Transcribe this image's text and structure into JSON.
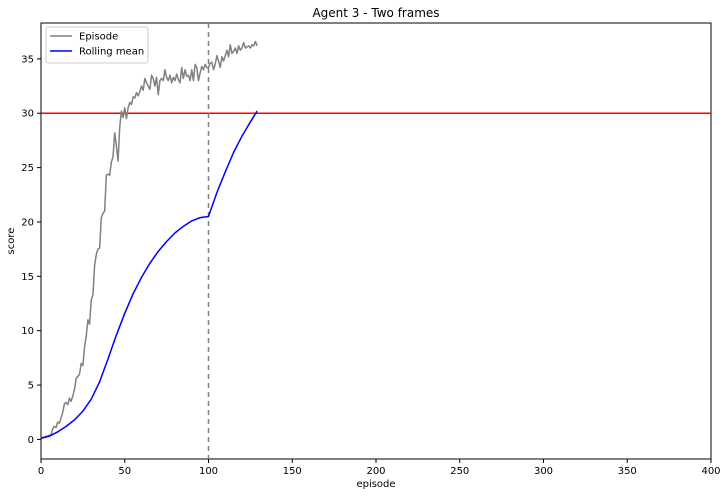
{
  "chart_data": {
    "type": "line",
    "title": "Agent 3 - Two frames",
    "xlabel": "episode",
    "ylabel": "score",
    "xlim": [
      0,
      400
    ],
    "ylim": [
      -1.8,
      38.3
    ],
    "xticks": [
      0,
      50,
      100,
      150,
      200,
      250,
      300,
      350,
      400
    ],
    "yticks": [
      0,
      5,
      10,
      15,
      20,
      25,
      30,
      35
    ],
    "grid": false,
    "legend_placement": "top-left",
    "colors": {
      "episode": "#808080",
      "rolling": "#0000ff",
      "target": "#ff0000",
      "vline": "#808080"
    },
    "hline": {
      "y": 30
    },
    "vline": {
      "x": 100
    },
    "series": [
      {
        "name": "Episode",
        "x": [
          0,
          1,
          2,
          3,
          4,
          5,
          6,
          7,
          8,
          9,
          10,
          11,
          12,
          13,
          14,
          15,
          16,
          17,
          18,
          19,
          20,
          21,
          22,
          23,
          24,
          25,
          26,
          27,
          28,
          29,
          30,
          31,
          32,
          33,
          34,
          35,
          36,
          37,
          38,
          39,
          40,
          41,
          42,
          43,
          44,
          45,
          46,
          47,
          48,
          49,
          50,
          51,
          52,
          53,
          54,
          55,
          56,
          57,
          58,
          59,
          60,
          61,
          62,
          63,
          64,
          65,
          66,
          67,
          68,
          69,
          70,
          71,
          72,
          73,
          74,
          75,
          76,
          77,
          78,
          79,
          80,
          81,
          82,
          83,
          84,
          85,
          86,
          87,
          88,
          89,
          90,
          91,
          92,
          93,
          94,
          95,
          96,
          97,
          98,
          99,
          100,
          101,
          102,
          103,
          104,
          105,
          106,
          107,
          108,
          109,
          110,
          111,
          112,
          113,
          114,
          115,
          116,
          117,
          118,
          119,
          120,
          121,
          122,
          123,
          124,
          125,
          126,
          127,
          128,
          129
        ],
        "values": [
          0.1,
          0.2,
          0.2,
          0.3,
          0.3,
          0.4,
          0.4,
          1.0,
          1.2,
          1.1,
          1.6,
          1.5,
          2.0,
          2.5,
          3.3,
          3.4,
          3.2,
          3.8,
          3.5,
          4.0,
          4.6,
          5.6,
          5.8,
          6.0,
          7.0,
          6.8,
          8.5,
          9.5,
          11.0,
          10.6,
          12.8,
          13.3,
          16.0,
          17.0,
          17.5,
          17.6,
          20.4,
          20.8,
          21.0,
          24.3,
          24.4,
          24.3,
          25.5,
          26.0,
          28.2,
          27.0,
          25.6,
          28.7,
          30.2,
          29.6,
          30.5,
          29.5,
          30.5,
          31.0,
          30.8,
          31.5,
          31.4,
          31.9,
          31.6,
          32.0,
          32.5,
          32.1,
          33.2,
          32.8,
          32.5,
          32.2,
          33.5,
          33.2,
          32.5,
          33.3,
          31.7,
          33.0,
          33.2,
          33.0,
          34.0,
          33.3,
          33.0,
          33.5,
          32.8,
          33.3,
          33.0,
          33.6,
          33.1,
          32.8,
          34.2,
          33.2,
          34.0,
          33.4,
          33.5,
          33.0,
          34.0,
          33.0,
          34.5,
          34.2,
          33.0,
          33.7,
          34.3,
          34.0,
          34.5,
          34.2,
          34.2,
          34.6,
          34.7,
          34.0,
          34.5,
          35.3,
          34.8,
          34.2,
          35.2,
          34.8,
          35.3,
          35.8,
          35.2,
          36.3,
          35.5,
          35.7,
          36.0,
          35.5,
          36.2,
          35.8,
          36.0,
          36.5,
          36.0,
          36.1,
          36.2,
          36.0,
          36.3,
          36.2,
          36.6,
          36.2
        ],
        "color": "#808080"
      },
      {
        "name": "Rolling mean",
        "x": [
          0,
          5,
          10,
          15,
          20,
          25,
          30,
          35,
          40,
          45,
          50,
          55,
          60,
          65,
          70,
          75,
          80,
          85,
          90,
          95,
          100,
          105,
          110,
          115,
          120,
          125,
          129
        ],
        "values": [
          0.1,
          0.3,
          0.7,
          1.2,
          1.8,
          2.6,
          3.7,
          5.3,
          7.4,
          9.6,
          11.6,
          13.4,
          14.9,
          16.2,
          17.3,
          18.2,
          19.0,
          19.6,
          20.1,
          20.4,
          20.5,
          22.7,
          24.6,
          26.4,
          27.9,
          29.2,
          30.2
        ],
        "color": "#0000ff"
      }
    ]
  }
}
